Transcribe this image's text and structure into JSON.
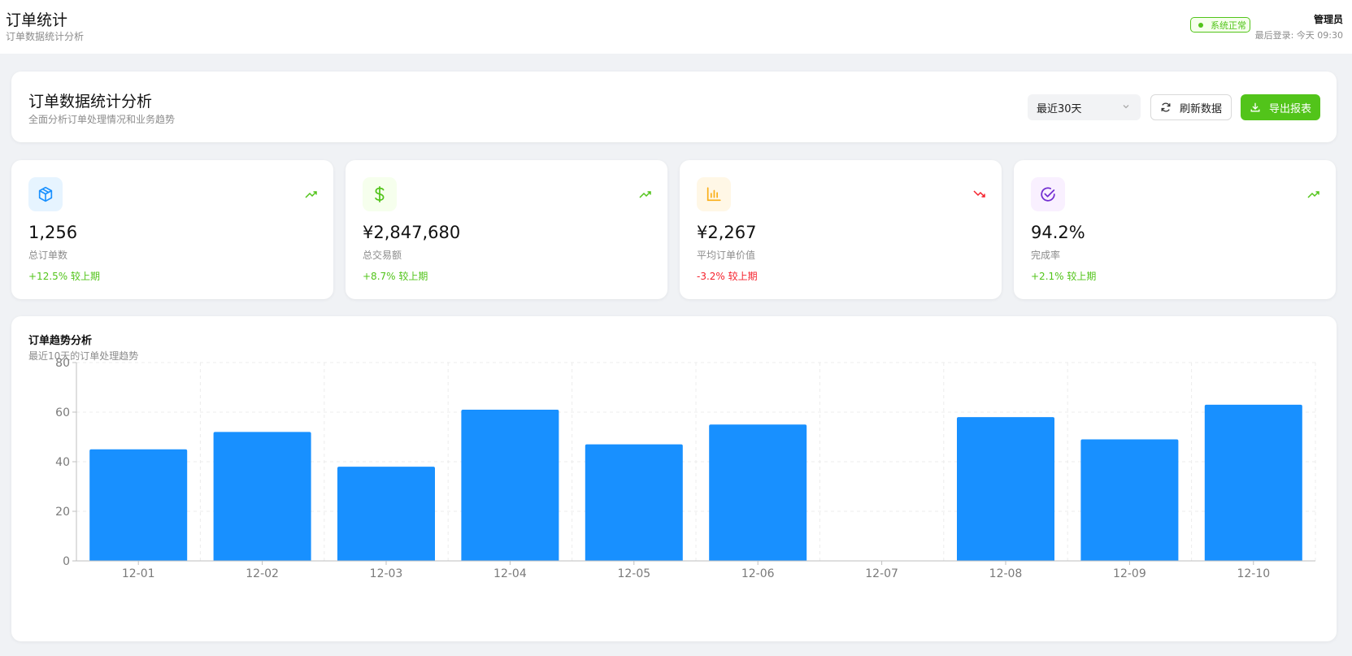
{
  "topbar": {
    "title": "订单统计",
    "subtitle": "订单数据统计分析",
    "status": "系统正常",
    "user_name": "管理员",
    "last_login": "最后登录: 今天 09:30"
  },
  "header": {
    "title": "订单数据统计分析",
    "subtitle": "全面分析订单处理情况和业务趋势",
    "range_select": "最近30天",
    "refresh_label": "刷新数据",
    "export_label": "导出报表"
  },
  "stats": [
    {
      "icon": "package-icon",
      "value": "1,256",
      "label": "总订单数",
      "change": "+12.5% 较上期",
      "trend": "up",
      "color": "#1890ff",
      "bg": "#e6f4ff"
    },
    {
      "icon": "dollar-icon",
      "value": "¥2,847,680",
      "label": "总交易额",
      "change": "+8.7% 较上期",
      "trend": "up",
      "color": "#52c41a",
      "bg": "#f6ffed"
    },
    {
      "icon": "bar-chart-icon",
      "value": "¥2,267",
      "label": "平均订单价值",
      "change": "-3.2% 较上期",
      "trend": "down",
      "color": "#faad14",
      "bg": "#fff7e6"
    },
    {
      "icon": "check-circle-icon",
      "value": "94.2%",
      "label": "完成率",
      "change": "+2.1% 较上期",
      "trend": "up",
      "color": "#722ed1",
      "bg": "#f9f0ff"
    }
  ],
  "colors": {
    "up": "#52c41a",
    "down": "#f5222d",
    "bar": "#1890ff"
  },
  "chart": {
    "title": "订单趋势分析",
    "subtitle": "最近10天的订单处理趋势"
  },
  "chart_data": {
    "type": "bar",
    "categories": [
      "12-01",
      "12-02",
      "12-03",
      "12-04",
      "12-05",
      "12-06",
      "12-07",
      "12-08",
      "12-09",
      "12-10"
    ],
    "values": [
      45,
      52,
      38,
      61,
      47,
      55,
      0,
      58,
      49,
      63
    ],
    "ylim": [
      0,
      80
    ],
    "yticks": [
      0,
      20,
      40,
      60,
      80
    ],
    "grid": true,
    "legend": "none"
  }
}
